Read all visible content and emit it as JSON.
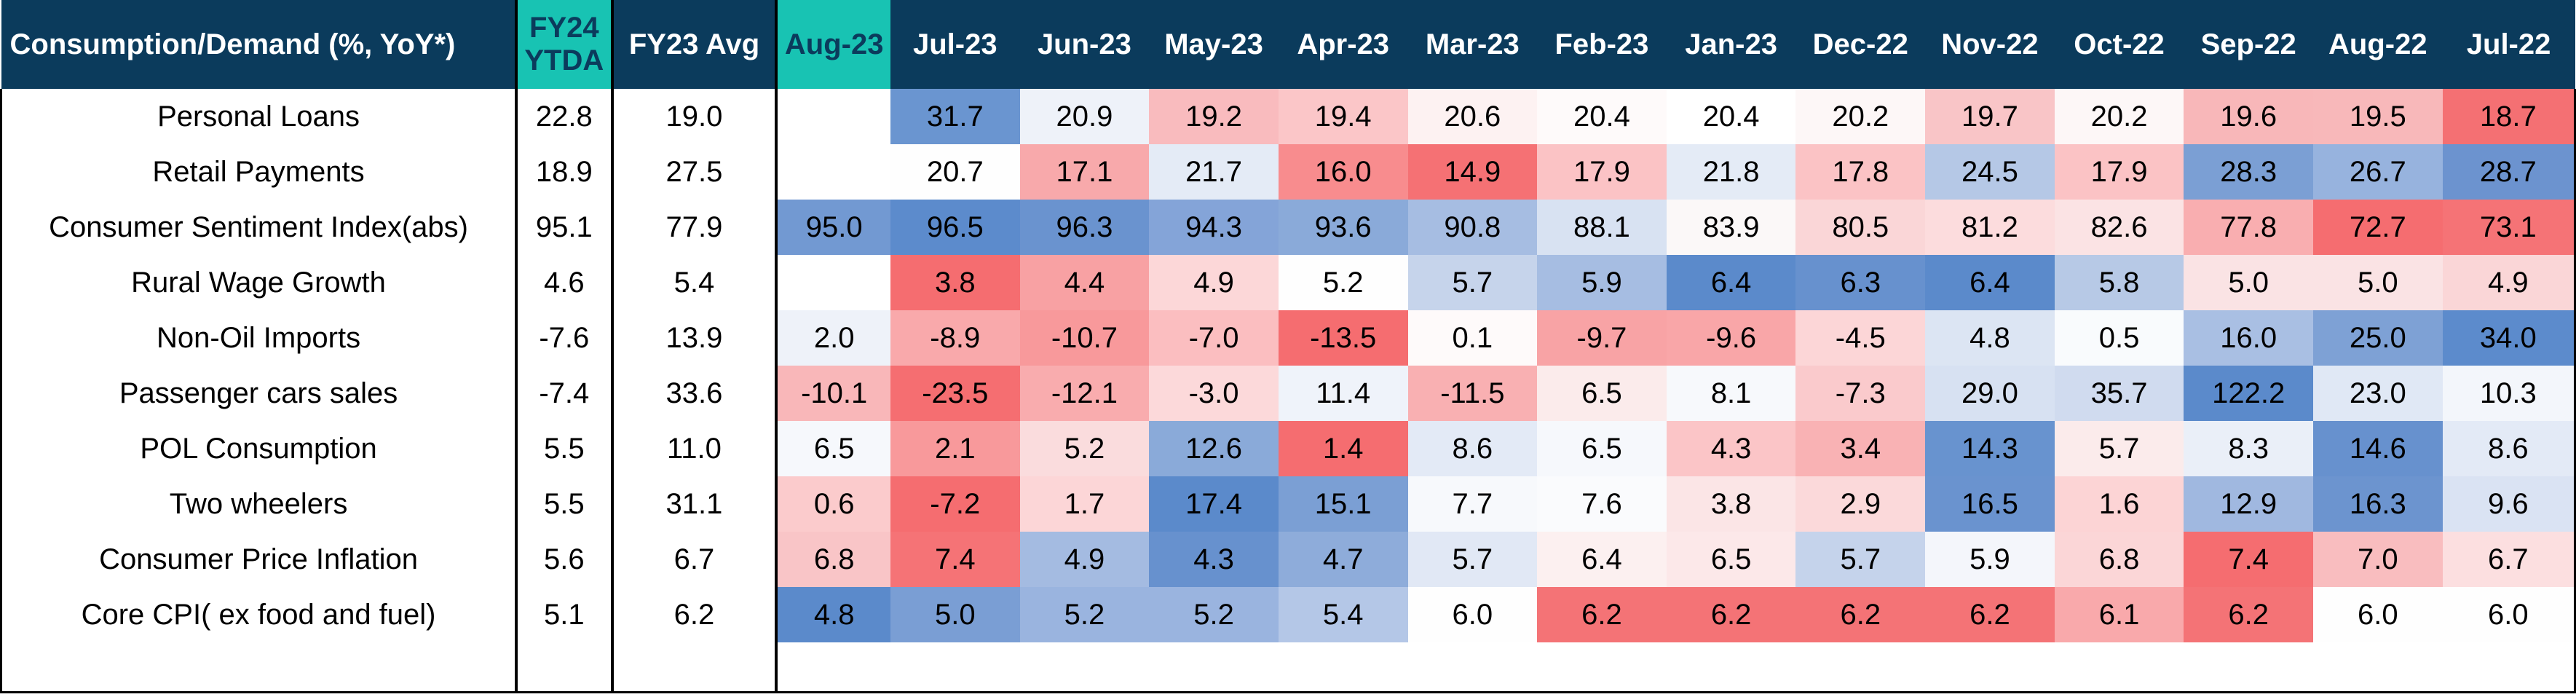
{
  "table": {
    "columns": [
      "Consumption/Demand (%, YoY*)",
      "FY24 YTDA",
      "FY23 Avg",
      "Aug-23",
      "Jul-23",
      "Jun-23",
      "May-23",
      "Apr-23",
      "Mar-23",
      "Feb-23",
      "Jan-23",
      "Dec-22",
      "Nov-22",
      "Oct-22",
      "Sep-22",
      "Aug-22",
      "Jul-22"
    ],
    "rows": [
      {
        "label": "Personal Loans",
        "ytda": "22.8",
        "fy23avg": "19.0",
        "values": [
          "",
          "31.7",
          "20.9",
          "19.2",
          "19.4",
          "20.6",
          "20.4",
          "20.4",
          "20.2",
          "19.7",
          "20.2",
          "19.6",
          "19.5",
          "18.7"
        ],
        "colors": [
          "#ffffff",
          "#6a95d0",
          "#eef2f9",
          "#f9bbbe",
          "#fbc6c8",
          "#fdf2f2",
          "#fefafa",
          "#ffffff",
          "#fdf7f7",
          "#f9c5c7",
          "#fdf7f7",
          "#f8b7b9",
          "#f8b8ba",
          "#f47073"
        ]
      },
      {
        "label": "Retail Payments",
        "ytda": "18.9",
        "fy23avg": "27.5",
        "values": [
          "",
          "20.7",
          "17.1",
          "21.7",
          "16.0",
          "14.9",
          "17.9",
          "21.8",
          "17.8",
          "24.5",
          "17.9",
          "28.3",
          "26.7",
          "28.7"
        ],
        "colors": [
          "#ffffff",
          "#fefefe",
          "#f8a9ab",
          "#e4ebf6",
          "#f88c8e",
          "#f57174",
          "#fbc3c5",
          "#e4ebf6",
          "#fbc3c5",
          "#b5c8e6",
          "#fbc3c5",
          "#7b9fd4",
          "#97b3de",
          "#6c93cf"
        ]
      },
      {
        "label": "Consumer Sentiment Index(abs)",
        "ytda": "95.1",
        "fy23avg": "77.9",
        "values": [
          "95.0",
          "96.5",
          "96.3",
          "94.3",
          "93.6",
          "90.8",
          "88.1",
          "83.9",
          "80.5",
          "81.2",
          "82.6",
          "77.8",
          "72.7",
          "73.1"
        ],
        "colors": [
          "#7299d2",
          "#5c8bcc",
          "#6a93cf",
          "#84a4d8",
          "#8aaad9",
          "#a6bde2",
          "#d8e2f2",
          "#fbf8f8",
          "#fad6d7",
          "#fcdcdd",
          "#fbe3e4",
          "#f9aeb0",
          "#f56d70",
          "#f57376"
        ]
      },
      {
        "label": "Rural Wage Growth",
        "ytda": "4.6",
        "fy23avg": "5.4",
        "values": [
          "",
          "3.8",
          "4.4",
          "4.9",
          "5.2",
          "5.7",
          "5.9",
          "6.4",
          "6.3",
          "6.4",
          "5.8",
          "5.0",
          "5.0",
          "4.9"
        ],
        "colors": [
          "#ffffff",
          "#f56d70",
          "#f8a1a3",
          "#fcd7d8",
          "#fefefe",
          "#c6d4eb",
          "#a6bde2",
          "#5b8acb",
          "#6791ce",
          "#5b8acb",
          "#b7c9e6",
          "#fae3e4",
          "#fae3e4",
          "#fad6d7"
        ]
      },
      {
        "label": "Non-Oil Imports",
        "ytda": "-7.6",
        "fy23avg": "13.9",
        "values": [
          "2.0",
          "-8.9",
          "-10.7",
          "-7.0",
          "-13.5",
          "0.1",
          "-9.7",
          "-9.6",
          "-4.5",
          "4.8",
          "0.5",
          "16.0",
          "25.0",
          "34.0"
        ],
        "colors": [
          "#eef2f9",
          "#f9a9ab",
          "#f8999b",
          "#fbbec0",
          "#f56d70",
          "#fefafa",
          "#f8a3a5",
          "#f9a6a8",
          "#fcd6d7",
          "#dce5f3",
          "#f9fbfd",
          "#a9bfe3",
          "#7ea1d5",
          "#5c8bcc"
        ]
      },
      {
        "label": "Passenger cars sales",
        "ytda": "-7.4",
        "fy23avg": "33.6",
        "values": [
          "-10.1",
          "-23.5",
          "-12.1",
          "-3.0",
          "11.4",
          "-11.5",
          "6.5",
          "8.1",
          "-7.3",
          "29.0",
          "35.7",
          "122.2",
          "23.0",
          "10.3"
        ],
        "colors": [
          "#f9b7b9",
          "#f56e71",
          "#f9acae",
          "#fcd9da",
          "#eff3fa",
          "#f9b0b2",
          "#fbebeb",
          "#f7f9fc",
          "#facacc",
          "#d7e1f2",
          "#d0dbef",
          "#5b8acb",
          "#e0e8f5",
          "#f3f6fb"
        ]
      },
      {
        "label": "POL Consumption",
        "ytda": "5.5",
        "fy23avg": "11.0",
        "values": [
          "6.5",
          "2.1",
          "5.2",
          "12.6",
          "1.4",
          "8.6",
          "6.5",
          "4.3",
          "3.4",
          "14.3",
          "5.7",
          "8.3",
          "14.6",
          "8.6"
        ],
        "colors": [
          "#f6f8fc",
          "#f8999b",
          "#fadcdd",
          "#8aaad9",
          "#f56d70",
          "#e3eaf6",
          "#f6f8fc",
          "#fbc5c7",
          "#f9b2b4",
          "#6893cf",
          "#fbebeb",
          "#eaeff8",
          "#6791ce",
          "#e3eaf6"
        ]
      },
      {
        "label": "Two wheelers",
        "ytda": "5.5",
        "fy23avg": "31.1",
        "values": [
          "0.6",
          "-7.2",
          "1.7",
          "17.4",
          "15.1",
          "7.7",
          "7.6",
          "3.8",
          "2.9",
          "16.5",
          "1.6",
          "12.9",
          "16.3",
          "9.6"
        ],
        "colors": [
          "#fbcbcc",
          "#f56d70",
          "#fcd6d7",
          "#5b8acb",
          "#7b9fd4",
          "#f7f9fc",
          "#fafbfd",
          "#fbe5e6",
          "#fbd9da",
          "#6a93cf",
          "#fcd4d5",
          "#a0b8e0",
          "#6c94cf",
          "#dae3f3"
        ]
      },
      {
        "label": "Consumer Price Inflation",
        "ytda": "5.6",
        "fy23avg": "6.7",
        "values": [
          "6.8",
          "7.4",
          "4.9",
          "4.3",
          "4.7",
          "5.7",
          "6.4",
          "6.5",
          "5.7",
          "5.9",
          "6.8",
          "7.4",
          "7.0",
          "6.7"
        ],
        "colors": [
          "#f9c5c7",
          "#f57376",
          "#a4bbe1",
          "#6791ce",
          "#8eacda",
          "#e1e8f5",
          "#fcf0f0",
          "#fce8e9",
          "#c5d3eb",
          "#f4f6fb",
          "#fbd6d7",
          "#f56d70",
          "#f9bdbf",
          "#fcdfe0"
        ]
      },
      {
        "label": "Core CPI( ex food and fuel)",
        "ytda": "5.1",
        "fy23avg": "6.2",
        "values": [
          "4.8",
          "5.0",
          "5.2",
          "5.2",
          "5.4",
          "6.0",
          "6.2",
          "6.2",
          "6.2",
          "6.2",
          "6.1",
          "6.2",
          "6.0",
          "6.0"
        ],
        "colors": [
          "#5b8acb",
          "#7a9ed4",
          "#9ab4df",
          "#9ab4df",
          "#b4c7e7",
          "#fefefe",
          "#f47376",
          "#f47376",
          "#f47376",
          "#f47376",
          "#f9a9ab",
          "#f47376",
          "#fefefe",
          "#fefefe"
        ]
      }
    ]
  }
}
